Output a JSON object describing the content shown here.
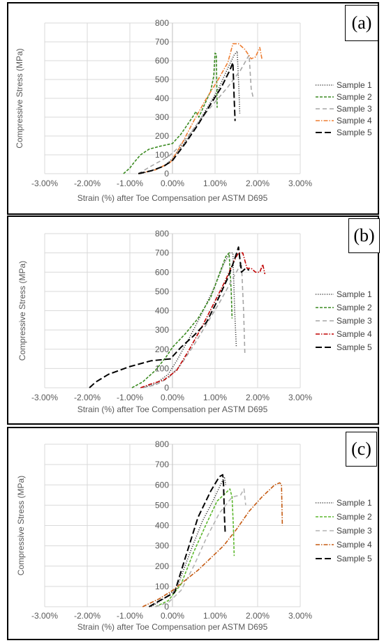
{
  "chart_data": [
    {
      "type": "line",
      "panel_label": "(a)",
      "xlabel": "Strain (%) after Toe Compensation per ASTM D695",
      "ylabel": "Compressive Stress (MPa)",
      "xlim": [
        -3,
        3
      ],
      "ylim": [
        0,
        800
      ],
      "x_ticks": [
        "-3.00%",
        "-2.00%",
        "-1.00%",
        "0.00%",
        "1.00%",
        "2.00%",
        "3.00%"
      ],
      "y_ticks": [
        "0",
        "100",
        "200",
        "300",
        "400",
        "500",
        "600",
        "700",
        "800"
      ],
      "grid": true,
      "legend": "right",
      "series": [
        {
          "name": "Sample 1",
          "color": "#404040",
          "dash": "1.2,2",
          "x": [
            -0.75,
            -0.5,
            -0.2,
            0.0,
            0.3,
            0.6,
            0.9,
            1.1,
            1.3,
            1.45,
            1.52,
            1.56,
            1.58
          ],
          "y": [
            0,
            15,
            40,
            80,
            170,
            270,
            380,
            460,
            560,
            630,
            650,
            450,
            320
          ]
        },
        {
          "name": "Sample 2",
          "color": "#3a8a20",
          "dash": "4,2",
          "x": [
            -1.15,
            -1.0,
            -0.9,
            -0.75,
            -0.55,
            -0.3,
            0.0,
            0.2,
            0.35,
            0.5,
            0.55,
            0.62,
            0.7,
            0.8,
            0.9,
            0.97,
            1.0,
            1.03,
            1.05
          ],
          "y": [
            0,
            30,
            60,
            100,
            130,
            145,
            160,
            210,
            260,
            310,
            330,
            300,
            340,
            390,
            440,
            520,
            640,
            635,
            350
          ]
        },
        {
          "name": "Sample 3",
          "color": "#a6a6a6",
          "dash": "6,4",
          "x": [
            -0.8,
            -0.5,
            -0.1,
            0.1,
            0.4,
            0.7,
            1.0,
            1.3,
            1.6,
            1.8,
            1.85,
            1.9
          ],
          "y": [
            0,
            40,
            90,
            130,
            210,
            300,
            380,
            460,
            550,
            630,
            450,
            400
          ]
        },
        {
          "name": "Sample 4",
          "color": "#ed7d31",
          "dash": "6,2,1.5,2",
          "x": [
            -0.8,
            -0.4,
            -0.05,
            0.2,
            0.5,
            0.8,
            1.05,
            1.3,
            1.42,
            1.55,
            1.7,
            1.85,
            1.95,
            2.05,
            2.1
          ],
          "y": [
            0,
            20,
            60,
            150,
            280,
            400,
            490,
            590,
            690,
            690,
            660,
            610,
            620,
            670,
            610
          ]
        },
        {
          "name": "Sample 5",
          "color": "#000000",
          "dash": "9,4",
          "x": [
            -0.8,
            -0.5,
            -0.2,
            0.0,
            0.3,
            0.6,
            0.9,
            1.15,
            1.35,
            1.42,
            1.45,
            1.47
          ],
          "y": [
            0,
            15,
            40,
            70,
            160,
            260,
            370,
            460,
            550,
            590,
            400,
            280
          ]
        }
      ]
    },
    {
      "type": "line",
      "panel_label": "(b)",
      "xlabel": "Strain (%) after Toe Compensation per ASTM D695",
      "ylabel": "Compressive Stress (MPa)",
      "xlim": [
        -3,
        3
      ],
      "ylim": [
        0,
        800
      ],
      "x_ticks": [
        "-3.00%",
        "-2.00%",
        "-1.00%",
        "0.00%",
        "1.00%",
        "2.00%",
        "3.00%"
      ],
      "y_ticks": [
        "0",
        "100",
        "200",
        "300",
        "400",
        "500",
        "600",
        "700",
        "800"
      ],
      "grid": true,
      "legend": "right",
      "series": [
        {
          "name": "Sample 1",
          "color": "#404040",
          "dash": "1.2,2",
          "x": [
            -0.7,
            -0.4,
            -0.1,
            0.1,
            0.4,
            0.7,
            1.0,
            1.2,
            1.35,
            1.42,
            1.46,
            1.5
          ],
          "y": [
            0,
            20,
            70,
            140,
            260,
            390,
            530,
            640,
            700,
            700,
            400,
            210
          ]
        },
        {
          "name": "Sample 2",
          "color": "#3a8a20",
          "dash": "4,2",
          "x": [
            -0.95,
            -0.7,
            -0.4,
            -0.15,
            0.0,
            0.3,
            0.6,
            0.9,
            1.1,
            1.25,
            1.33,
            1.38,
            1.4
          ],
          "y": [
            0,
            30,
            90,
            160,
            210,
            280,
            360,
            470,
            590,
            680,
            700,
            500,
            360
          ]
        },
        {
          "name": "Sample 3",
          "color": "#a6a6a6",
          "dash": "6,4",
          "x": [
            -0.7,
            -0.4,
            -0.1,
            0.2,
            0.5,
            0.8,
            1.1,
            1.35,
            1.55,
            1.62,
            1.67,
            1.7
          ],
          "y": [
            0,
            15,
            50,
            120,
            220,
            330,
            440,
            540,
            620,
            650,
            400,
            180
          ]
        },
        {
          "name": "Sample 4",
          "color": "#c00000",
          "dash": "6,2,1.5,2",
          "x": [
            -0.75,
            -0.5,
            -0.2,
            0.1,
            0.4,
            0.7,
            1.0,
            1.25,
            1.45,
            1.55,
            1.65,
            1.75,
            1.85,
            1.95,
            2.05,
            2.12,
            2.17
          ],
          "y": [
            0,
            20,
            40,
            90,
            200,
            320,
            450,
            560,
            660,
            700,
            700,
            620,
            620,
            600,
            600,
            640,
            590
          ]
        },
        {
          "name": "Sample 5",
          "color": "#000000",
          "dash": "9,4",
          "x": [
            -1.95,
            -1.8,
            -1.5,
            -1.0,
            -0.5,
            -0.05,
            0.2,
            0.5,
            0.8,
            1.05,
            1.3,
            1.45,
            1.55,
            1.62,
            1.72,
            1.8
          ],
          "y": [
            0,
            30,
            70,
            110,
            140,
            150,
            210,
            270,
            340,
            450,
            570,
            660,
            730,
            600,
            620,
            610
          ]
        }
      ]
    },
    {
      "type": "line",
      "panel_label": "(c)",
      "xlabel": "Strain (%) after Toe Compensation per ASTM D695",
      "ylabel": "Compressive Stress (MPa)",
      "xlim": [
        -3,
        3
      ],
      "ylim": [
        0,
        800
      ],
      "x_ticks": [
        "-3.00%",
        "-2.00%",
        "-1.00%",
        "0.00%",
        "1.00%",
        "2.00%",
        "3.00%"
      ],
      "y_ticks": [
        "0",
        "100",
        "200",
        "300",
        "400",
        "500",
        "600",
        "700",
        "800"
      ],
      "grid": true,
      "legend": "right",
      "series": [
        {
          "name": "Sample 1",
          "color": "#404040",
          "dash": "1.2,2",
          "x": [
            -0.5,
            -0.2,
            0.1,
            0.4,
            0.7,
            0.95,
            1.15,
            1.22,
            1.25
          ],
          "y": [
            0,
            40,
            90,
            260,
            420,
            520,
            610,
            640,
            600
          ]
        },
        {
          "name": "Sample 2",
          "color": "#5cb82e",
          "dash": "4,2",
          "x": [
            -0.4,
            -0.1,
            0.2,
            0.5,
            0.8,
            1.05,
            1.25,
            1.35,
            1.4,
            1.43,
            1.45
          ],
          "y": [
            0,
            30,
            110,
            270,
            410,
            520,
            560,
            580,
            540,
            400,
            250
          ]
        },
        {
          "name": "Sample 3",
          "color": "#b4b4b4",
          "dash": "6,4",
          "x": [
            -0.4,
            -0.1,
            0.2,
            0.5,
            0.8,
            1.1,
            1.4,
            1.6,
            1.68,
            1.72
          ],
          "y": [
            0,
            20,
            80,
            200,
            340,
            460,
            540,
            550,
            580,
            500
          ]
        },
        {
          "name": "Sample 4",
          "color": "#c55a11",
          "dash": "6,2,1.5,2",
          "x": [
            -0.7,
            -0.3,
            0.0,
            0.3,
            0.6,
            0.9,
            1.2,
            1.5,
            1.8,
            2.1,
            2.4,
            2.52,
            2.56,
            2.58
          ],
          "y": [
            0,
            40,
            80,
            130,
            180,
            240,
            300,
            380,
            470,
            540,
            600,
            610,
            600,
            400
          ]
        },
        {
          "name": "Sample 5",
          "color": "#000000",
          "dash": "9,4",
          "x": [
            -0.55,
            -0.3,
            0.05,
            0.3,
            0.6,
            0.9,
            1.1,
            1.18,
            1.2,
            1.22,
            1.24
          ],
          "y": [
            0,
            30,
            70,
            240,
            440,
            570,
            640,
            650,
            600,
            450,
            360
          ]
        }
      ]
    }
  ]
}
